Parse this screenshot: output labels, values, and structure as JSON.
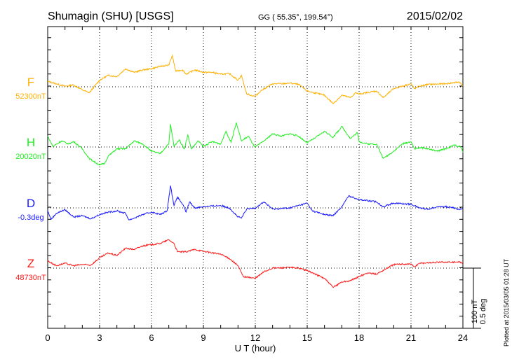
{
  "header": {
    "station": "Shumagin (SHU)  [USGS]",
    "coords": "GG ( 55.35°, 199.54°)",
    "date": "2015/02/02"
  },
  "footer": {
    "plotted": "Plotted at 2015/03/05 01:28 UT"
  },
  "chart_data": {
    "type": "line",
    "title": "Shumagin (SHU)  [USGS]",
    "xlabel": "U T (hour)",
    "xlim": [
      0,
      24
    ],
    "xticks": [
      "0",
      "3",
      "6",
      "9",
      "12",
      "15",
      "18",
      "21",
      "24"
    ],
    "grid": "dotted vertical every 3 h, dotted baseline per series",
    "scale_bar": {
      "nT_label": "100 nT",
      "deg_label": "0.5 deg",
      "nT": 100,
      "deg": 0.5
    },
    "series": [
      {
        "name": "F",
        "baseline_label": "52300nT",
        "unit": "nT",
        "color": "#ffb000",
        "x": [
          0,
          0.5,
          1,
          1.5,
          2,
          2.4,
          3,
          3.5,
          4,
          4.5,
          5,
          5.5,
          6,
          6.5,
          7,
          7.2,
          7.4,
          7.8,
          8,
          8.5,
          9,
          9.5,
          10,
          10.5,
          11,
          11.2,
          11.5,
          12,
          12.3,
          13,
          13.5,
          14,
          14.5,
          15,
          16,
          16.5,
          17,
          17.5,
          17.8,
          18,
          19,
          19.4,
          20,
          21,
          21.2,
          21.5,
          22,
          23,
          23.8,
          24
        ],
        "y": [
          9,
          5,
          1,
          3,
          -5,
          -10,
          11,
          19,
          17,
          30,
          24,
          28,
          30,
          34,
          36,
          52,
          26,
          28,
          21,
          28,
          24,
          24,
          21,
          22,
          11,
          19,
          -12,
          -16,
          -7,
          5,
          5,
          6,
          4,
          -7,
          -14,
          -28,
          -14,
          -18,
          -10,
          -12,
          -7,
          -18,
          -3,
          5,
          -3,
          1,
          4,
          5,
          8,
          1
        ]
      },
      {
        "name": "H",
        "baseline_label": "20020nT",
        "unit": "nT",
        "color": "#22ee22",
        "x": [
          0,
          0.3,
          0.8,
          1.2,
          1.5,
          2,
          2.4,
          3,
          3.3,
          3.5,
          4,
          4.5,
          5,
          5.5,
          6,
          6.5,
          7,
          7.1,
          7.3,
          7.6,
          7.9,
          8.1,
          8.3,
          8.7,
          9,
          9.5,
          10,
          10.3,
          10.6,
          10.9,
          11.2,
          11.6,
          11.9,
          12,
          12.5,
          13,
          13.5,
          14,
          14.5,
          15,
          15.5,
          16,
          16.5,
          17,
          17.5,
          17.9,
          18,
          18.5,
          19,
          19.4,
          20,
          20.5,
          21,
          21.2,
          21.5,
          22,
          22.5,
          23,
          23.5,
          23.9,
          24
        ],
        "y": [
          18,
          1,
          10,
          5,
          9,
          -3,
          -19,
          -30,
          -27,
          -15,
          -3,
          -3,
          10,
          5,
          -7,
          -11,
          5,
          38,
          1,
          12,
          -3,
          20,
          -3,
          10,
          1,
          9,
          5,
          26,
          8,
          40,
          10,
          18,
          3,
          0,
          10,
          22,
          18,
          22,
          18,
          7,
          16,
          26,
          16,
          34,
          14,
          24,
          9,
          5,
          5,
          -19,
          -7,
          5,
          9,
          -3,
          -1,
          -3,
          -7,
          -3,
          3,
          0,
          -9
        ]
      },
      {
        "name": "D",
        "baseline_label": "-0.3deg",
        "unit": "deg",
        "color": "#1a1aff",
        "x": [
          0,
          0.2,
          0.5,
          1,
          1.5,
          2,
          2.5,
          3,
          3.5,
          4,
          4.5,
          4.7,
          5,
          5.5,
          6,
          6.5,
          6.9,
          7.1,
          7.3,
          7.5,
          7.8,
          8,
          8.2,
          8.5,
          9,
          10,
          10.5,
          11,
          11.2,
          11.5,
          12,
          12.5,
          13,
          14,
          15,
          15.3,
          16,
          16.5,
          17,
          17.4,
          18,
          19,
          19.4,
          20,
          21,
          21.5,
          22,
          22.5,
          23,
          23.5,
          23.8,
          24
        ],
        "y": [
          -0.025,
          -0.095,
          -0.045,
          -0.015,
          -0.075,
          -0.065,
          -0.09,
          -0.055,
          -0.035,
          -0.025,
          -0.045,
          -0.1,
          -0.085,
          -0.055,
          -0.035,
          -0.055,
          -0.025,
          0.185,
          0.02,
          0.09,
          0.03,
          -0.035,
          0.05,
          0,
          0.01,
          0.02,
          0,
          -0.075,
          -0.085,
          -0.01,
          0,
          0.05,
          -0.01,
          0,
          0.04,
          -0.025,
          -0.055,
          -0.065,
          0.01,
          0.1,
          0.07,
          0.05,
          0.01,
          0.04,
          0.03,
          0,
          -0.01,
          0.01,
          0.01,
          0,
          -0.015,
          0
        ]
      },
      {
        "name": "Z",
        "baseline_label": "48730nT",
        "unit": "nT",
        "color": "#ff1a1a",
        "x": [
          0,
          0.5,
          1,
          1.5,
          2,
          2.5,
          3,
          3.5,
          4,
          4.5,
          5,
          5.5,
          6,
          6.5,
          7,
          7.3,
          7.5,
          8,
          8.5,
          9,
          10,
          10.5,
          11,
          11.3,
          12,
          12.5,
          13,
          14,
          14.5,
          15,
          16,
          16.5,
          17,
          17.5,
          18,
          18.5,
          19,
          19.5,
          20,
          21,
          21.2,
          21.5,
          22,
          23,
          23.8,
          24
        ],
        "y": [
          12,
          4,
          8,
          4,
          6,
          5,
          17,
          25,
          21,
          33,
          31,
          37,
          39,
          41,
          47,
          41,
          27,
          27,
          31,
          28,
          23,
          16,
          4,
          -14,
          -17,
          -6,
          0,
          1,
          0,
          -4,
          -17,
          -32,
          -23,
          -21,
          -14,
          -8,
          -10,
          -2,
          6,
          7,
          2,
          8,
          9,
          10,
          10,
          7
        ]
      }
    ]
  }
}
